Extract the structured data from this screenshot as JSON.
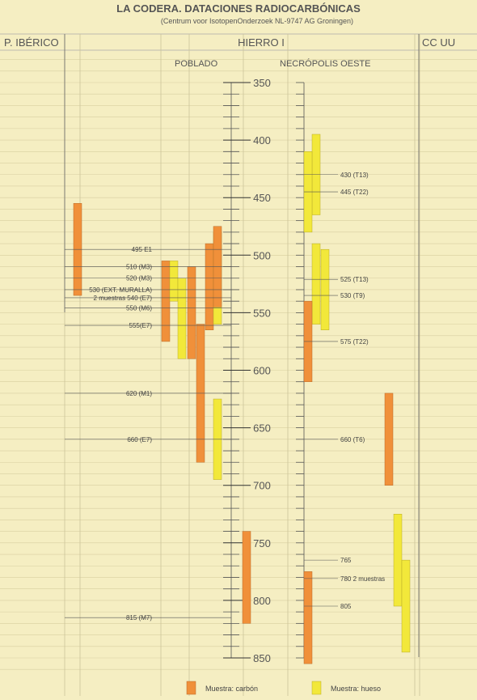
{
  "title": "LA CODERA. DATACIONES RADIOCARBÓNICAS",
  "subtitle": "(Centrum voor IsotopenOnderzoek  NL-9747 AG Groningen)",
  "periods": [
    "P. IBÉRICO",
    "HIERRO I",
    "CC UU"
  ],
  "groups": [
    "POBLADO",
    "NECRÓPOLIS OESTE"
  ],
  "legend": [
    {
      "label": "Muestra: carbón",
      "color": "#f0903a"
    },
    {
      "label": "Muestra: hueso",
      "color": "#f2e83a"
    }
  ],
  "chart_data": {
    "type": "bar",
    "orientation": "vertical-range",
    "title": "LA CODERA. DATACIONES RADIOCARBÓNICAS",
    "subtitle": "(Centrum voor IsotopenOnderzoek  NL-9747 AG Groningen)",
    "axis": {
      "direction": "downward",
      "range": [
        330,
        860
      ],
      "ticks": [
        350,
        400,
        450,
        500,
        550,
        600,
        650,
        700,
        750,
        800,
        850
      ]
    },
    "colors": {
      "carbon": "#f0903a",
      "hueso": "#f2e83a"
    },
    "bars": [
      {
        "group": "P. IBÉRICO",
        "material": "carbon",
        "start": 455,
        "end": 535
      },
      {
        "group": "POBLADO",
        "material": "carbon",
        "start": 505,
        "end": 575
      },
      {
        "group": "POBLADO",
        "material": "hueso",
        "start": 505,
        "end": 540
      },
      {
        "group": "POBLADO",
        "material": "hueso",
        "start": 520,
        "end": 590
      },
      {
        "group": "POBLADO",
        "material": "carbon",
        "start": 510,
        "end": 590
      },
      {
        "group": "POBLADO",
        "material": "carbon",
        "start": 560,
        "end": 680
      },
      {
        "group": "POBLADO",
        "material": "carbon",
        "start": 490,
        "end": 565
      },
      {
        "group": "POBLADO",
        "material": "hueso",
        "start": 480,
        "end": 560
      },
      {
        "group": "POBLADO",
        "material": "carbon",
        "start": 475,
        "end": 545
      },
      {
        "group": "POBLADO",
        "material": "hueso",
        "start": 625,
        "end": 695
      },
      {
        "group": "POBLADO",
        "material": "carbon",
        "start": 775,
        "end": 855
      },
      {
        "group": "NECRÓPOLIS OESTE",
        "material": "hueso",
        "start": 395,
        "end": 465
      },
      {
        "group": "NECRÓPOLIS OESTE",
        "material": "hueso",
        "start": 410,
        "end": 480
      },
      {
        "group": "NECRÓPOLIS OESTE",
        "material": "hueso",
        "start": 490,
        "end": 560
      },
      {
        "group": "NECRÓPOLIS OESTE",
        "material": "hueso",
        "start": 495,
        "end": 565
      },
      {
        "group": "NECRÓPOLIS OESTE",
        "material": "carbon",
        "start": 540,
        "end": 610
      },
      {
        "group": "NECRÓPOLIS OESTE",
        "material": "carbon",
        "start": 620,
        "end": 700
      },
      {
        "group": "CC UU",
        "material": "hueso",
        "start": 725,
        "end": 805
      },
      {
        "group": "CC UU",
        "material": "hueso",
        "start": 765,
        "end": 845
      },
      {
        "group": "CC UU",
        "material": "carbon",
        "start": 740,
        "end": 820
      }
    ],
    "labels": [
      {
        "text": "495 E1",
        "value": 495,
        "side": "left"
      },
      {
        "text": "510 (M3)",
        "value": 510,
        "side": "left"
      },
      {
        "text": "520 (M3)",
        "value": 520,
        "side": "left"
      },
      {
        "text": "530 (EXT. MURALLA)",
        "value": 530,
        "side": "left"
      },
      {
        "text": "2 muestras 540 (E7)",
        "value": 537,
        "side": "left"
      },
      {
        "text": "550 (M6)",
        "value": 546,
        "side": "left"
      },
      {
        "text": "555(E7)",
        "value": 561,
        "side": "left"
      },
      {
        "text": "620 (M1)",
        "value": 620,
        "side": "left"
      },
      {
        "text": "660 (E7)",
        "value": 660,
        "side": "left"
      },
      {
        "text": "815 (M7)",
        "value": 815,
        "side": "left"
      },
      {
        "text": "430 (T13)",
        "value": 430,
        "side": "right"
      },
      {
        "text": "445 (T22)",
        "value": 445,
        "side": "right"
      },
      {
        "text": "525 (T13)",
        "value": 521,
        "side": "right"
      },
      {
        "text": "530 (T9)",
        "value": 535,
        "side": "right"
      },
      {
        "text": "575 (T22)",
        "value": 575,
        "side": "right"
      },
      {
        "text": "660 (T6)",
        "value": 660,
        "side": "right"
      },
      {
        "text": "765",
        "value": 765,
        "side": "right"
      },
      {
        "text": "780 2 muestras",
        "value": 781,
        "side": "right"
      },
      {
        "text": "805",
        "value": 805,
        "side": "right"
      }
    ]
  }
}
